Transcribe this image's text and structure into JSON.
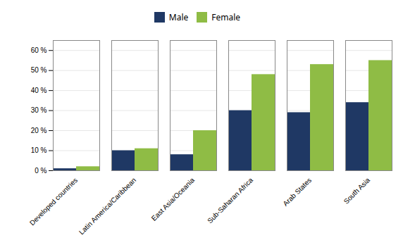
{
  "chart_data": {
    "type": "bar",
    "categories": [
      "Developed countries",
      "Latin America/Caribbean",
      "East Asia/Oceania",
      "Sub-Saharan Africa",
      "Arab States",
      "South Asia"
    ],
    "series": [
      {
        "name": "Male",
        "color": "#1F3864",
        "values": [
          1,
          10,
          8,
          30,
          29,
          34
        ]
      },
      {
        "name": "Female",
        "color": "#8fbc45",
        "values": [
          2,
          11,
          20,
          48,
          53,
          55
        ]
      }
    ],
    "ylim": [
      0,
      65
    ],
    "yticks": [
      {
        "value": 0,
        "label": "0 %"
      },
      {
        "value": 10,
        "label": "10 %"
      },
      {
        "value": 20,
        "label": "20 %"
      },
      {
        "value": 30,
        "label": "30 %"
      },
      {
        "value": 40,
        "label": "40 %"
      },
      {
        "value": 50,
        "label": "50 %"
      },
      {
        "value": 60,
        "label": "60 %"
      }
    ],
    "grid": true,
    "legend": "top"
  }
}
